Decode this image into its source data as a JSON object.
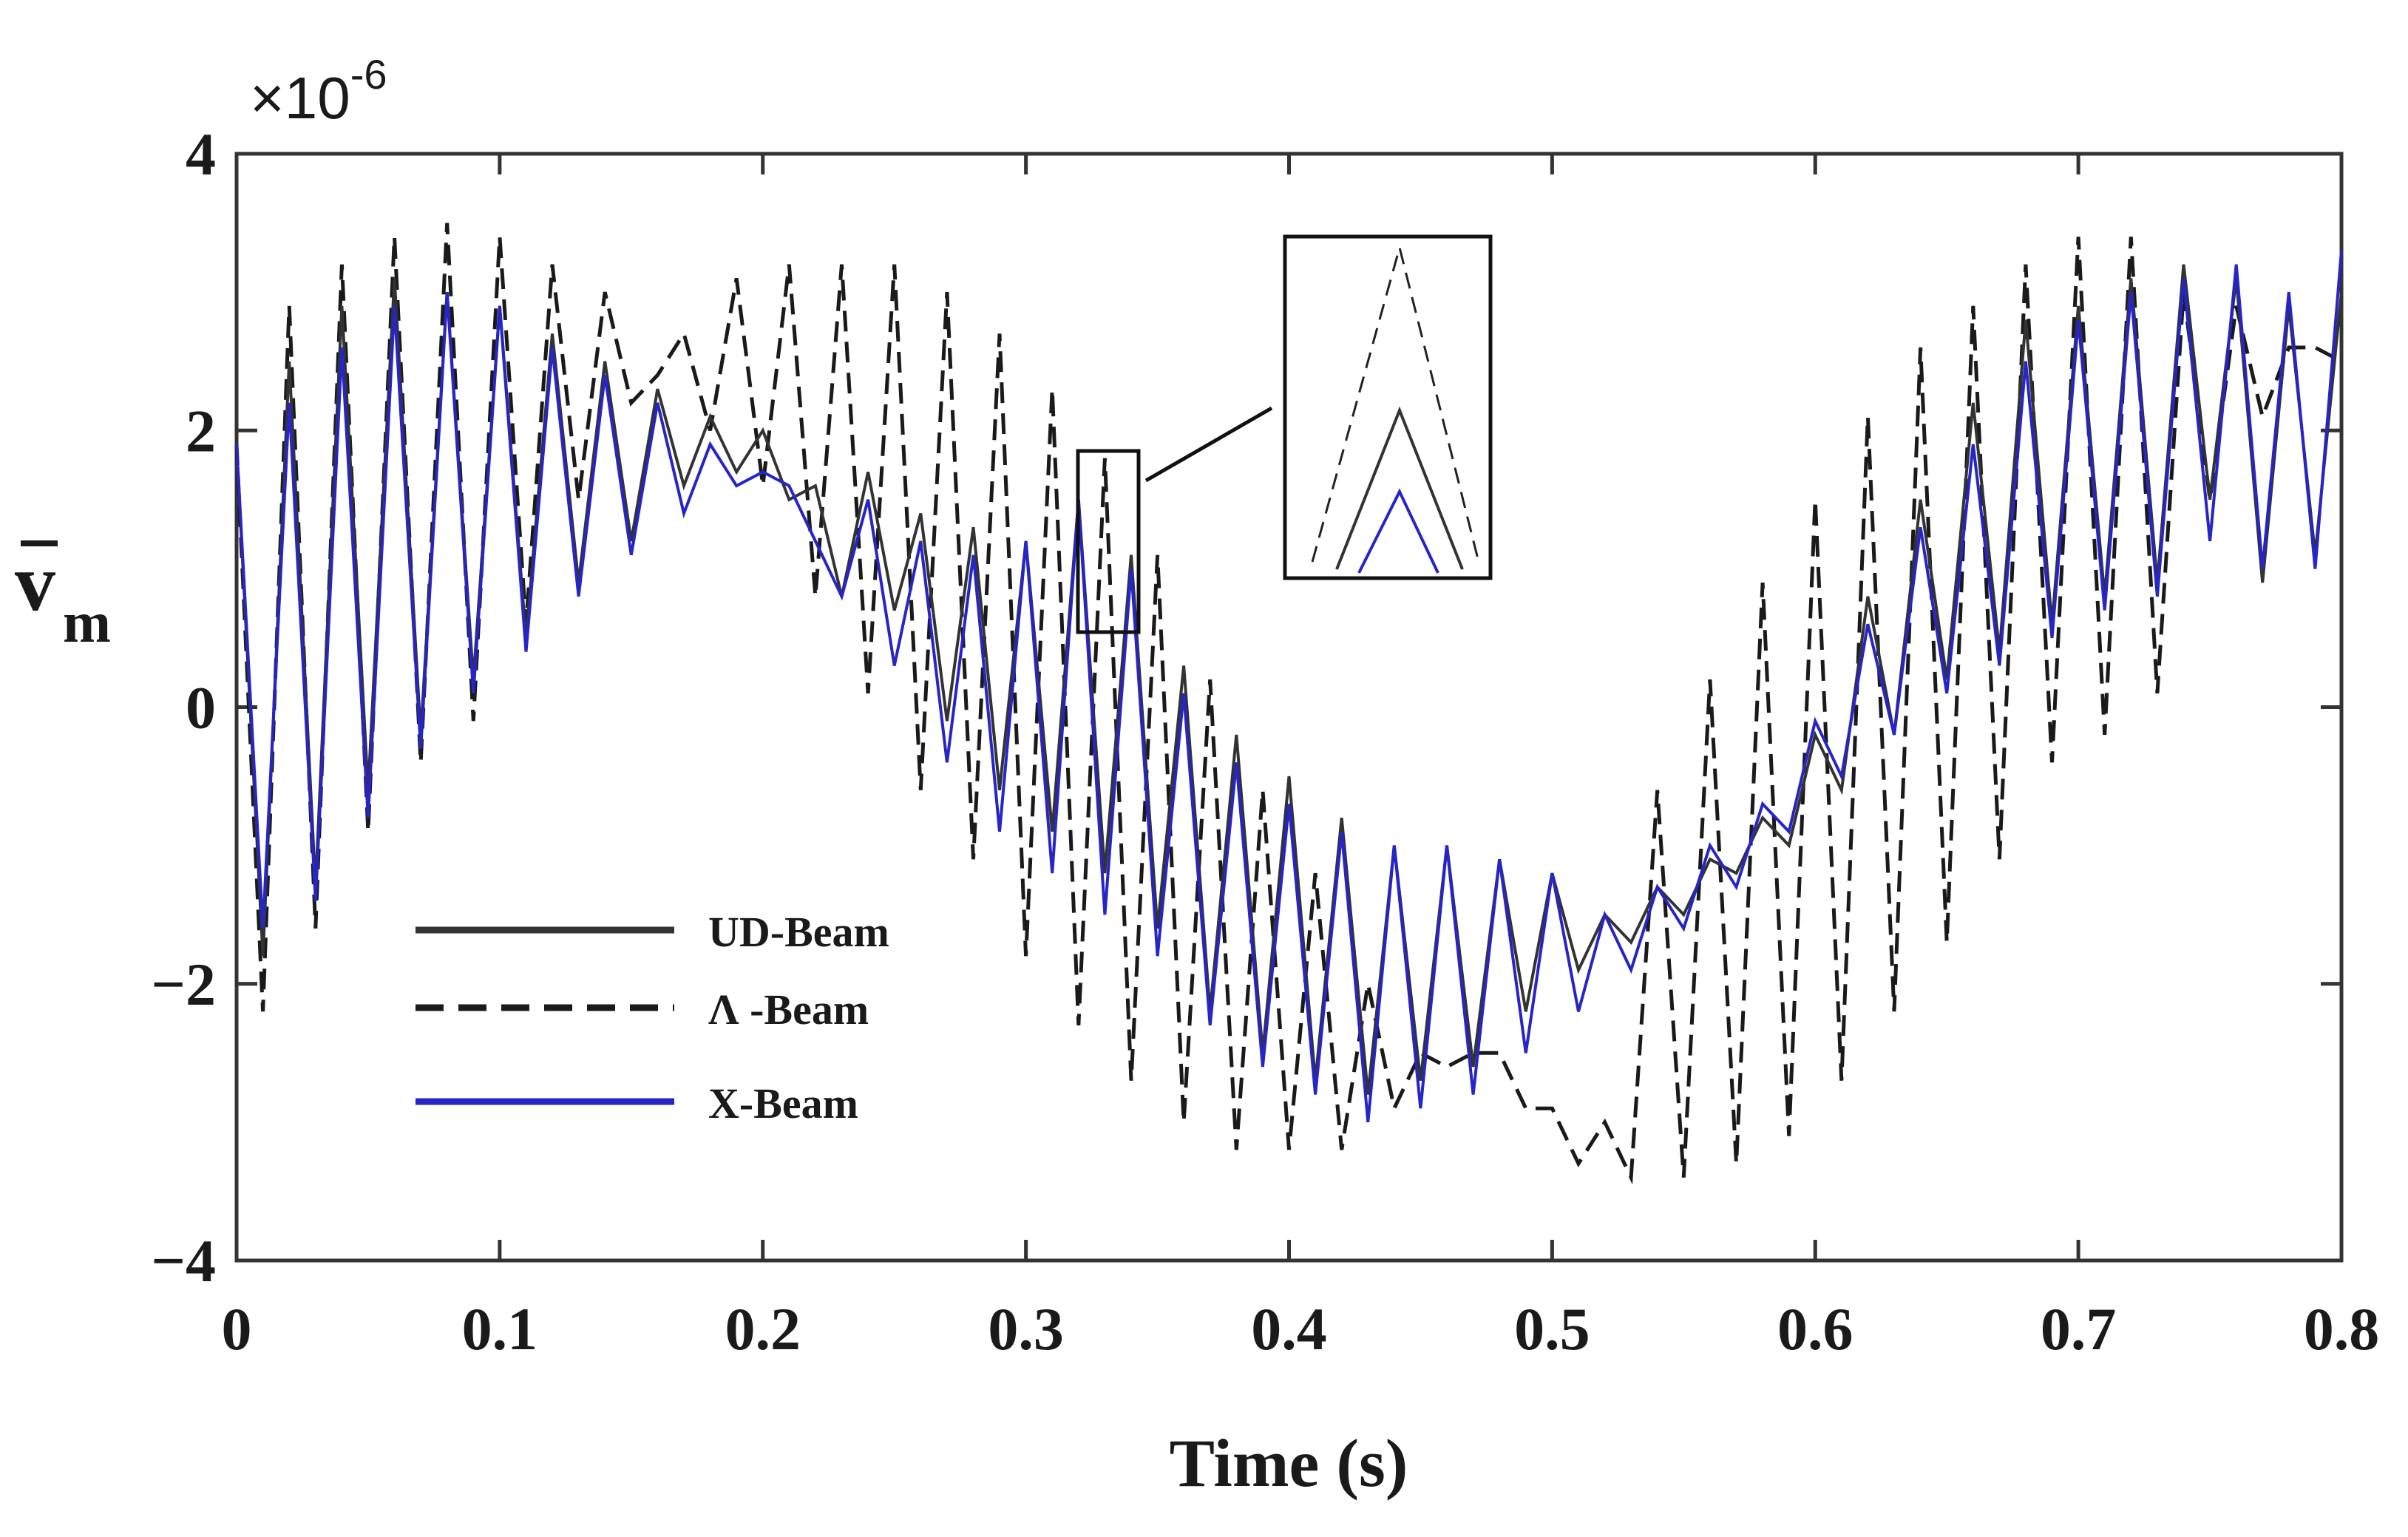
{
  "chart_data": {
    "type": "line",
    "title": "",
    "xlabel": "Time (s)",
    "ylabel": "v",
    "ylabel_subscript": "m",
    "y_exponent_base": "×10",
    "y_exponent_power": "-6",
    "xlim": [
      0,
      0.8
    ],
    "ylim": [
      -4,
      4
    ],
    "x_ticks": [
      0,
      0.1,
      0.2,
      0.3,
      0.4,
      0.5,
      0.6,
      0.7,
      0.8
    ],
    "x_tick_labels": [
      "0",
      "0.1",
      "0.2",
      "0.3",
      "0.4",
      "0.5",
      "0.6",
      "0.7",
      "0.8"
    ],
    "y_ticks": [
      -4,
      -2,
      0,
      2,
      4
    ],
    "y_tick_labels": [
      "−4",
      "−2",
      "0",
      "2",
      "4"
    ],
    "grid": false,
    "legend_position": "lower-left",
    "x": [
      0,
      0.01,
      0.02,
      0.03,
      0.04,
      0.05,
      0.06,
      0.07,
      0.08,
      0.09,
      0.1,
      0.11,
      0.12,
      0.13,
      0.14,
      0.15,
      0.16,
      0.17,
      0.18,
      0.19,
      0.2,
      0.21,
      0.22,
      0.23,
      0.24,
      0.25,
      0.26,
      0.27,
      0.28,
      0.29,
      0.3,
      0.31,
      0.32,
      0.33,
      0.34,
      0.35,
      0.36,
      0.37,
      0.38,
      0.39,
      0.4,
      0.41,
      0.42,
      0.43,
      0.44,
      0.45,
      0.46,
      0.47,
      0.48,
      0.49,
      0.5,
      0.51,
      0.52,
      0.53,
      0.54,
      0.55,
      0.56,
      0.57,
      0.58,
      0.59,
      0.6,
      0.61,
      0.62,
      0.63,
      0.64,
      0.65,
      0.66,
      0.67,
      0.68,
      0.69,
      0.7,
      0.71,
      0.72,
      0.73,
      0.74,
      0.75,
      0.76,
      0.77,
      0.78,
      0.79,
      0.8
    ],
    "series": [
      {
        "name": "UD-Beam",
        "color": "#333333",
        "style": "solid",
        "values": [
          1.9,
          -1.8,
          2.5,
          -1.3,
          2.9,
          -0.6,
          3.1,
          -0.2,
          3.0,
          0.2,
          2.9,
          0.5,
          2.7,
          0.9,
          2.5,
          1.2,
          2.3,
          1.6,
          2.1,
          1.7,
          2.0,
          1.5,
          1.6,
          0.8,
          1.7,
          0.7,
          1.4,
          -0.1,
          1.3,
          -0.6,
          1.2,
          -0.9,
          1.5,
          -1.2,
          1.1,
          -1.6,
          0.3,
          -2.2,
          -0.2,
          -2.5,
          -0.5,
          -2.7,
          -0.8,
          -2.8,
          -1.0,
          -2.7,
          -1.0,
          -2.6,
          -1.1,
          -2.2,
          -1.2,
          -1.9,
          -1.5,
          -1.7,
          -1.3,
          -1.5,
          -1.1,
          -1.2,
          -0.8,
          -1.0,
          -0.2,
          -0.6,
          0.8,
          -0.2,
          1.5,
          0.2,
          2.2,
          0.4,
          2.8,
          0.6,
          2.9,
          0.8,
          3.1,
          0.9,
          3.2,
          1.5,
          3.1,
          0.9,
          2.9,
          1.1,
          3.0
        ]
      },
      {
        "name": "Λ -Beam",
        "color": "#1a1a1a",
        "style": "dashed",
        "values": [
          1.9,
          -2.2,
          2.9,
          -1.6,
          3.2,
          -0.9,
          3.4,
          -0.4,
          3.5,
          -0.1,
          3.4,
          0.6,
          3.2,
          1.5,
          3.0,
          2.2,
          2.4,
          2.7,
          2.0,
          3.1,
          1.6,
          3.2,
          0.8,
          3.2,
          0.1,
          3.2,
          -0.6,
          3.0,
          -1.1,
          2.7,
          -1.8,
          2.3,
          -2.3,
          1.8,
          -2.7,
          1.1,
          -3.0,
          0.2,
          -3.2,
          -0.6,
          -3.2,
          -1.2,
          -3.2,
          -2.0,
          -2.9,
          -2.5,
          -2.6,
          -2.5,
          -2.5,
          -2.9,
          -2.9,
          -3.3,
          -3.0,
          -3.4,
          -0.6,
          -3.4,
          0.2,
          -3.3,
          0.9,
          -3.1,
          1.5,
          -2.7,
          2.1,
          -2.2,
          2.6,
          -1.7,
          2.9,
          -1.1,
          3.2,
          -0.4,
          3.4,
          -0.2,
          3.4,
          0.1,
          3.0,
          1.5,
          2.9,
          2.1,
          2.6,
          2.6,
          2.5
        ]
      },
      {
        "name": "X-Beam",
        "color": "#2525c8",
        "style": "solid",
        "values": [
          1.9,
          -1.6,
          2.2,
          -1.4,
          2.6,
          -0.8,
          2.9,
          -0.3,
          3.0,
          0.1,
          2.9,
          0.4,
          2.6,
          0.8,
          2.4,
          1.1,
          2.2,
          1.4,
          1.9,
          1.6,
          1.7,
          1.6,
          1.2,
          0.8,
          1.5,
          0.3,
          1.2,
          -0.4,
          1.1,
          -0.9,
          1.2,
          -1.2,
          1.5,
          -1.5,
          1.0,
          -1.8,
          0.1,
          -2.3,
          -0.4,
          -2.6,
          -0.7,
          -2.8,
          -0.9,
          -3.0,
          -1.0,
          -2.9,
          -1.0,
          -2.8,
          -1.1,
          -2.5,
          -1.2,
          -2.2,
          -1.5,
          -1.9,
          -1.3,
          -1.6,
          -1.0,
          -1.3,
          -0.7,
          -0.9,
          -0.1,
          -0.5,
          0.6,
          -0.2,
          1.3,
          0.1,
          1.9,
          0.3,
          2.5,
          0.5,
          2.8,
          0.7,
          3.0,
          0.8,
          3.1,
          1.2,
          3.2,
          1.0,
          3.0,
          1.0,
          3.3
        ]
      }
    ],
    "inset": {
      "description": "zoom of peaks near t=0.33",
      "peaks": [
        3.3,
        2.2,
        1.5
      ]
    }
  }
}
